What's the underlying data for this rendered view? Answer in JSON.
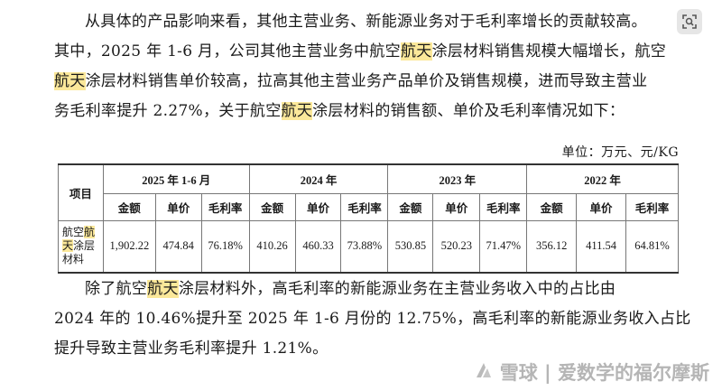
{
  "paragraph1": {
    "line1": "从具体的产品影响来看，其他主营业务、新能源业务对于毛利率增长的贡献较高。",
    "line2_a": "其中，2025 年 1-6 月，公司其他主营业务中航空",
    "line2_hl": "航天",
    "line2_b": "涂层材料销售规模大幅增长，航空",
    "line3_hl": "航天",
    "line3_b": "涂层材料销售单价较高，拉高其他主营业务产品单价及销售规模，进而导致主营业",
    "line4_a": "务毛利率提升 2.27%，关于航空",
    "line4_hl": "航天",
    "line4_b": "涂层材料的销售额、单价及毛利率情况如下："
  },
  "unit_label": "单位：万元、元/KG",
  "table": {
    "header_item": "项目",
    "periods": [
      "2025 年 1-6 月",
      "2024 年",
      "2023 年",
      "2022 年"
    ],
    "subheaders": [
      "金额",
      "单价",
      "毛利率"
    ],
    "row_label_a": "航空",
    "row_label_hl1": "航",
    "row_label_hl2": "天",
    "row_label_b": "涂层",
    "row_label_c": "材料",
    "row_values": [
      "1,902.22",
      "474.84",
      "76.18%",
      "410.26",
      "460.33",
      "73.88%",
      "530.85",
      "520.23",
      "71.47%",
      "356.12",
      "411.54",
      "64.81%"
    ]
  },
  "paragraph2": {
    "line1_a": "除了航空",
    "line1_hl": "航天",
    "line1_b": "涂层材料外，高毛利率的新能源业务在主营业务收入中的占比由",
    "line2": "2024 年的 10.46%提升至 2025 年 1-6 月份的 12.75%，高毛利率的新能源业务收入占比",
    "line3": "提升导致主营业务毛利率提升 1.21%。"
  },
  "watermark_text": "雪球 | 爱数学的福尔摩斯",
  "icons": {
    "top_right": "image-search-icon",
    "watermark_logo": "snowball-logo-icon"
  },
  "colors": {
    "highlight": "#fbe89a"
  }
}
